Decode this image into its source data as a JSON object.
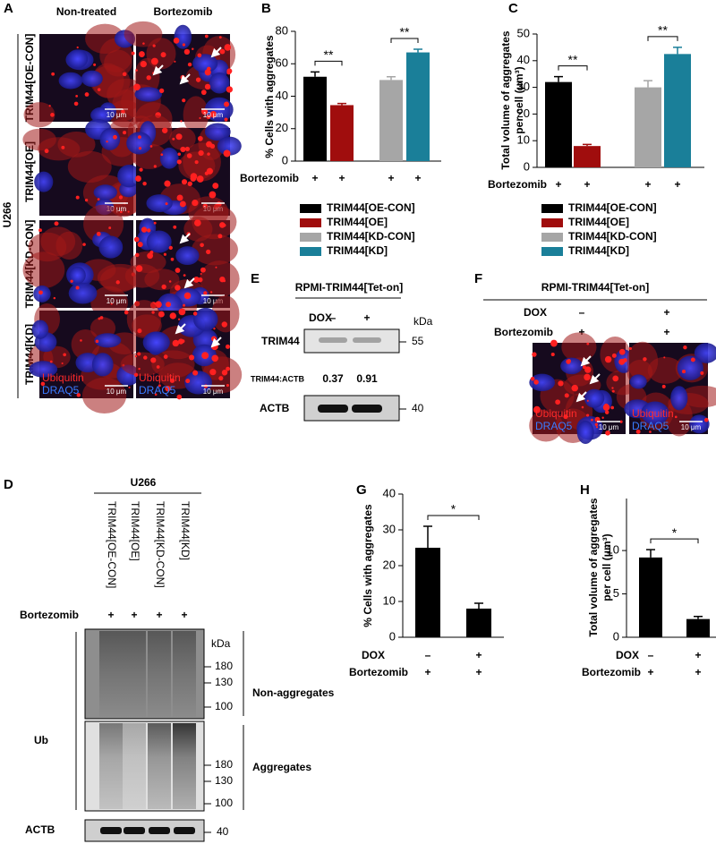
{
  "panel_a": {
    "letter": "A",
    "columns": [
      "Non-treated",
      "Bortezomib"
    ],
    "rows": [
      "TRIM44[OE-CON]",
      "TRIM44[OE]",
      "TRIM44[KD-CON]",
      "TRIM44[KD]"
    ],
    "cell_line": "U266",
    "scale_bar": "10 μm",
    "stains": [
      "Ubiquitin",
      "DRAQ5"
    ]
  },
  "panel_d": {
    "letter": "D",
    "cell_line": "U266",
    "lanes": [
      "TRIM44[OE-CON]",
      "TRIM44[OE]",
      "TRIM44[KD-CON]",
      "TRIM44[KD]"
    ],
    "treatment_label": "Bortezomib",
    "treatment": [
      "+",
      "+",
      "+",
      "+"
    ],
    "unit": "kDa",
    "ub_label": "Ub",
    "top_blot": "Non-aggregates",
    "top_markers": [
      180,
      130,
      100
    ],
    "bottom_blot": "Aggregates",
    "bottom_markers": [
      180,
      130,
      100
    ],
    "loading_label": "ACTB",
    "loading_marker": 40
  },
  "panel_e": {
    "letter": "E",
    "title": "RPMI-TRIM44[Tet-on]",
    "dox_label": "DOX",
    "dox": [
      "–",
      "+"
    ],
    "unit": "kDa",
    "blot_label": "TRIM44",
    "blot_marker": 55,
    "ratio_label": "TRIM44:ACTB",
    "ratios": [
      0.37,
      0.91
    ],
    "loading_label": "ACTB",
    "loading_marker": 40
  },
  "panel_f": {
    "letter": "F",
    "title": "RPMI-TRIM44[Tet-on]",
    "conditions": [
      {
        "label": "DOX",
        "values": [
          "–",
          "+"
        ]
      },
      {
        "label": "Bortezomib",
        "values": [
          "+",
          "+"
        ]
      }
    ],
    "stains": [
      "Ubiquitin",
      "DRAQ5"
    ],
    "scale_bar": "10 μm"
  },
  "chart_data": [
    {
      "type": "bar",
      "letter": "B",
      "ylabel": [
        "% Cells with aggregates"
      ],
      "ylim": [
        0,
        80
      ],
      "yticks": [
        0,
        20,
        40,
        60,
        80
      ],
      "series": [
        {
          "name": "TRIM44[OE-CON]",
          "color": "#000000",
          "values": [
            52
          ],
          "errors": [
            3
          ]
        },
        {
          "name": "TRIM44[OE]",
          "color": "#a00d0d",
          "values": [
            34.5
          ],
          "errors": [
            1
          ]
        },
        {
          "name": "TRIM44[KD-CON]",
          "color": "#a6a6a6",
          "values": [
            50
          ],
          "errors": [
            2
          ]
        },
        {
          "name": "TRIM44[KD]",
          "color": "#1a7f99",
          "values": [
            67
          ],
          "errors": [
            2
          ]
        }
      ],
      "conditions": [
        {
          "label": "Bortezomib",
          "values": [
            "+",
            "+",
            "+",
            "+"
          ]
        }
      ],
      "significance": [
        "**",
        "**"
      ]
    },
    {
      "type": "bar",
      "letter": "C",
      "ylabel": [
        "Total volume of aggregates",
        "per cell (μm³)"
      ],
      "ylim": [
        0,
        50
      ],
      "yticks": [
        0,
        10,
        20,
        30,
        40,
        50
      ],
      "series": [
        {
          "name": "TRIM44[OE-CON]",
          "color": "#000000",
          "values": [
            32
          ],
          "errors": [
            2
          ]
        },
        {
          "name": "TRIM44[OE]",
          "color": "#a00d0d",
          "values": [
            8
          ],
          "errors": [
            0.6
          ]
        },
        {
          "name": "TRIM44[KD-CON]",
          "color": "#a6a6a6",
          "values": [
            30
          ],
          "errors": [
            2.5
          ]
        },
        {
          "name": "TRIM44[KD]",
          "color": "#1a7f99",
          "values": [
            42.5
          ],
          "errors": [
            2.5
          ]
        }
      ],
      "conditions": [
        {
          "label": "Bortezomib",
          "values": [
            "+",
            "+",
            "+",
            "+"
          ]
        }
      ],
      "significance": [
        "**",
        "**"
      ]
    },
    {
      "type": "bar",
      "letter": "G",
      "ylabel": [
        "% Cells with aggregates"
      ],
      "ylim": [
        0,
        40
      ],
      "yticks": [
        0,
        10,
        20,
        30,
        40
      ],
      "series": [
        {
          "color": "#000000",
          "values": [
            25,
            8
          ],
          "errors": [
            6,
            1.5
          ]
        }
      ],
      "conditions": [
        {
          "label": "DOX",
          "values": [
            "–",
            "+"
          ]
        },
        {
          "label": "Bortezomib",
          "values": [
            "+",
            "+"
          ]
        }
      ],
      "significance": [
        "*"
      ]
    },
    {
      "type": "bar",
      "letter": "H",
      "ylabel": [
        "Total volume of aggregates",
        "per cell (μm³)"
      ],
      "ylim": [
        0,
        16
      ],
      "yticks": [
        0,
        5,
        10
      ],
      "series": [
        {
          "color": "#000000",
          "values": [
            9.2,
            2.1
          ],
          "errors": [
            0.9,
            0.3
          ]
        }
      ],
      "conditions": [
        {
          "label": "DOX",
          "values": [
            "–",
            "+"
          ]
        },
        {
          "label": "Bortezomib",
          "values": [
            "+",
            "+"
          ]
        }
      ],
      "significance": [
        "*"
      ]
    }
  ]
}
